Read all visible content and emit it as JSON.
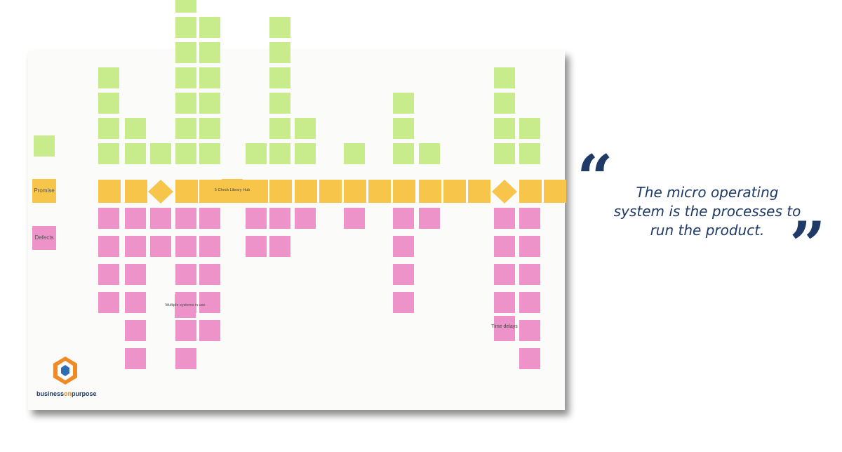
{
  "board": {
    "row_labels": [
      "Promise",
      "Defects"
    ],
    "notes": [
      "5 Check Library Hub",
      "Multiple systems in use",
      "Time delays"
    ]
  },
  "quote": {
    "lines": [
      "The micro operating",
      "system is the processes to",
      "run the product."
    ]
  },
  "logo": {
    "parts": [
      "business",
      "on",
      "purpose"
    ]
  }
}
